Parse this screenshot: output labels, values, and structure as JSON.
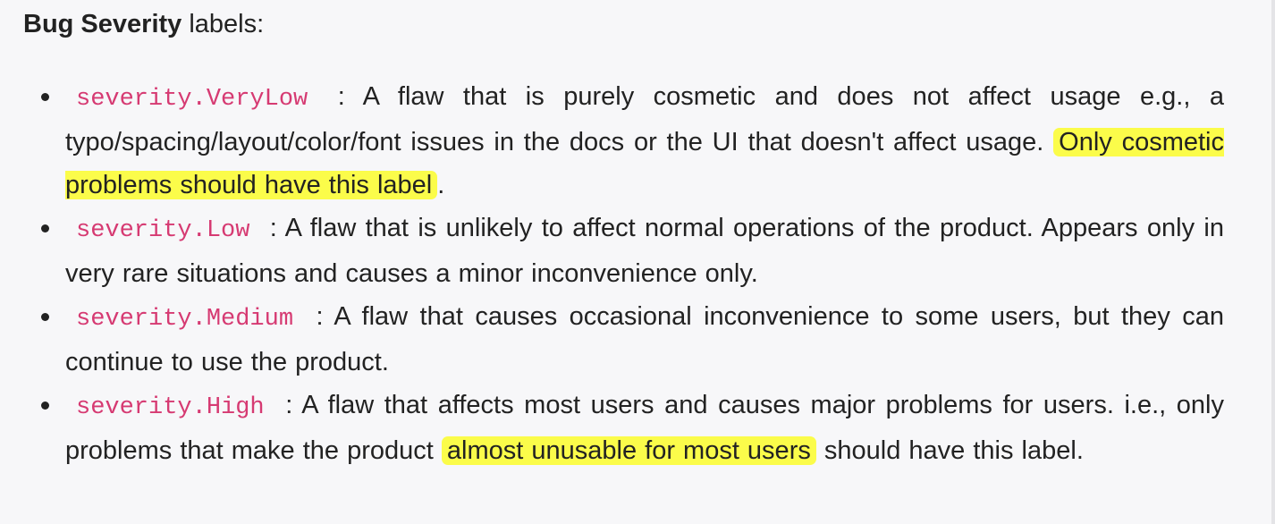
{
  "heading": {
    "bold": "Bug Severity",
    "rest": " labels:"
  },
  "items": [
    {
      "code": "severity.VeryLow",
      "text_before": " : A flaw that is purely cosmetic and does not affect usage e.g., a typo/spacing/layout/color/font issues in the docs or the UI that doesn't affect usage. ",
      "highlight": "Only cosmetic problems should have this label",
      "text_after": "."
    },
    {
      "code": "severity.Low",
      "text_before": " : A flaw that is unlikely to affect normal operations of the product. Appears only in very rare situations and causes a minor inconvenience only.",
      "highlight": "",
      "text_after": ""
    },
    {
      "code": "severity.Medium",
      "text_before": " : A flaw that causes occasional inconvenience to some users, but they can continue to use the product.",
      "highlight": "",
      "text_after": ""
    },
    {
      "code": "severity.High",
      "text_before": " : A flaw that affects most users and causes major problems for users. i.e., only problems that make the product ",
      "highlight": "almost unusable for most users",
      "text_after": " should have this label."
    }
  ],
  "colors": {
    "background": "#f7f7f9",
    "text": "#222222",
    "code": "#d63a72",
    "highlight": "#fbfc4a"
  }
}
